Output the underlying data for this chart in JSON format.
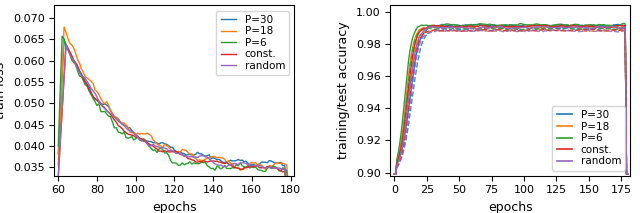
{
  "left_xlabel": "epochs",
  "left_ylabel": "train loss",
  "left_xlim": [
    58,
    182
  ],
  "left_ylim": [
    0.033,
    0.073
  ],
  "left_xticks": [
    60,
    80,
    100,
    120,
    140,
    160,
    180
  ],
  "left_yticks": [
    0.035,
    0.04,
    0.045,
    0.05,
    0.055,
    0.06,
    0.065,
    0.07
  ],
  "right_xlabel": "epochs",
  "right_ylabel": "training/test accuracy",
  "right_xlim": [
    -3,
    182
  ],
  "right_ylim": [
    0.898,
    1.004
  ],
  "right_xticks": [
    0,
    25,
    50,
    75,
    100,
    125,
    150,
    175
  ],
  "right_yticks": [
    0.9,
    0.92,
    0.94,
    0.96,
    0.98,
    1.0
  ],
  "colors": {
    "P30": "#1f77b4",
    "P18": "#ff7f0e",
    "P6": "#2ca02c",
    "const": "#d62728",
    "random": "#9467bd"
  },
  "legend_labels": [
    "P=30",
    "P=18",
    "P=6",
    "const.",
    "random"
  ],
  "seed": 42
}
